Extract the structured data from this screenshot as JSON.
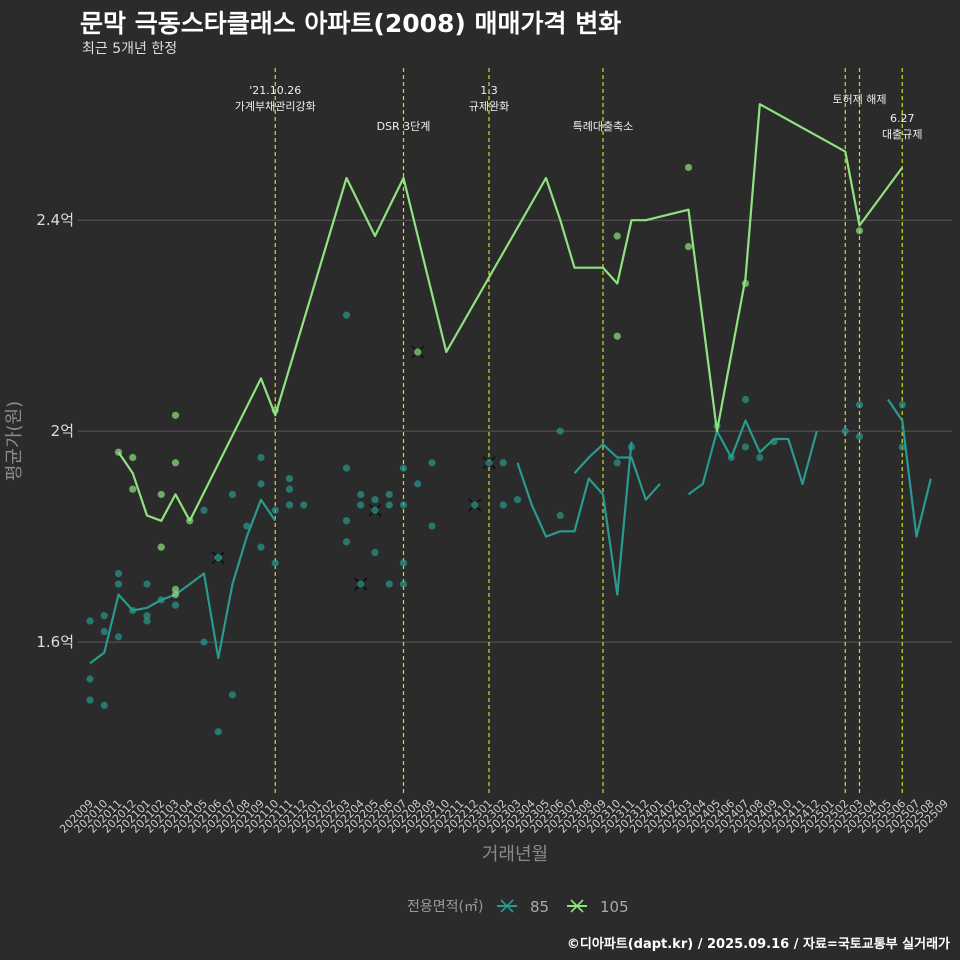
{
  "header": {
    "title": "문막 극동스타클래스 아파트(2008) 매매가격 변화",
    "subtitle": "최근 5개년 한정"
  },
  "footer": {
    "caption": "©디아파트(dapt.kr) / 2025.09.16 / 자료=국토교통부 실거래가"
  },
  "colors": {
    "background": "#2b2b2b",
    "grid": "#5a5a5a",
    "series_85": "#2a9a8f",
    "series_105": "#8fe37f",
    "event_line": "#d7d72a"
  },
  "chart_data": {
    "type": "line",
    "title": "문막 극동스타클래스 아파트(2008) 매매가격 변화",
    "subtitle": "최근 5개년 한정",
    "xlabel": "거래년월",
    "ylabel": "평균가(원)",
    "ylim": [
      1.31,
      2.7
    ],
    "yticks": [
      1.6,
      2.0,
      2.4
    ],
    "ytick_labels": [
      "1.6억",
      "2억",
      "2.4억"
    ],
    "grid": true,
    "legend": {
      "title": "전용면적(㎡)",
      "position": "bottom",
      "entries": [
        "85",
        "105"
      ]
    },
    "x_categories": [
      "202009",
      "202010",
      "202011",
      "202012",
      "202101",
      "202102",
      "202103",
      "202104",
      "202105",
      "202106",
      "202107",
      "202108",
      "202109",
      "202110",
      "202111",
      "202112",
      "202201",
      "202202",
      "202203",
      "202204",
      "202205",
      "202206",
      "202207",
      "202208",
      "202209",
      "202210",
      "202211",
      "202212",
      "202301",
      "202302",
      "202303",
      "202304",
      "202305",
      "202306",
      "202307",
      "202308",
      "202309",
      "202310",
      "202311",
      "202312",
      "202401",
      "202402",
      "202403",
      "202404",
      "202405",
      "202406",
      "202407",
      "202408",
      "202409",
      "202410",
      "202411",
      "202412",
      "202501",
      "202502",
      "202503",
      "202504",
      "202505",
      "202506",
      "202507",
      "202508",
      "202509"
    ],
    "events": [
      {
        "x": "202110",
        "label": "'21.10.26\n가계부채관리강화",
        "row": 0
      },
      {
        "x": "202207",
        "label": "DSR 3단계",
        "row": 1
      },
      {
        "x": "202301",
        "label": "1.3\n규제완화",
        "row": 0
      },
      {
        "x": "202309",
        "label": "특례대출축소",
        "row": 1
      },
      {
        "x": "202502",
        "label": "",
        "row": 0
      },
      {
        "x": "202503",
        "label": "토허제 해제",
        "row": 0
      },
      {
        "x": "202506",
        "label": "6.27\n대출규제",
        "row": 1
      }
    ],
    "series": [
      {
        "name": "85",
        "color": "#2a9a8f",
        "lines": [
          [
            [
              "202009",
              1.56
            ],
            [
              "202010",
              1.58
            ],
            [
              "202011",
              1.69
            ],
            [
              "202012",
              1.66
            ],
            [
              "202101",
              1.665
            ],
            [
              "202102",
              1.68
            ],
            [
              "202103",
              1.69
            ],
            [
              "202104",
              1.71
            ],
            [
              "202105",
              1.73
            ],
            [
              "202106",
              1.57
            ],
            [
              "202107",
              1.71
            ],
            [
              "202108",
              1.8
            ],
            [
              "202109",
              1.87
            ],
            [
              "202110",
              1.83
            ]
          ],
          [
            [
              "202303",
              1.94
            ],
            [
              "202304",
              1.86
            ],
            [
              "202305",
              1.8
            ],
            [
              "202306",
              1.81
            ],
            [
              "202307",
              1.81
            ],
            [
              "202308",
              1.91
            ],
            [
              "202309",
              1.88
            ],
            [
              "202310",
              1.69
            ],
            [
              "202311",
              1.98
            ]
          ],
          [
            [
              "202307",
              1.92
            ],
            [
              "202308",
              1.95
            ],
            [
              "202309",
              1.975
            ],
            [
              "202310",
              1.95
            ],
            [
              "202311",
              1.95
            ],
            [
              "202312",
              1.87
            ],
            [
              "202401",
              1.9
            ]
          ],
          [
            [
              "202403",
              1.88
            ],
            [
              "202404",
              1.9
            ],
            [
              "202405",
              2.0
            ],
            [
              "202406",
              1.95
            ],
            [
              "202407",
              2.02
            ],
            [
              "202408",
              1.96
            ],
            [
              "202409",
              1.985
            ],
            [
              "202410",
              1.985
            ],
            [
              "202411",
              1.9
            ],
            [
              "202412",
              2.0
            ]
          ],
          [
            [
              "202505",
              2.06
            ],
            [
              "202506",
              2.02
            ],
            [
              "202507",
              1.8
            ],
            [
              "202508",
              1.91
            ]
          ]
        ],
        "points": [
          [
            "202009",
            1.64
          ],
          [
            "202009",
            1.53
          ],
          [
            "202009",
            1.49
          ],
          [
            "202010",
            1.65
          ],
          [
            "202010",
            1.62
          ],
          [
            "202010",
            1.48
          ],
          [
            "202011",
            1.73
          ],
          [
            "202011",
            1.71
          ],
          [
            "202011",
            1.61
          ],
          [
            "202012",
            1.66
          ],
          [
            "202101",
            1.65
          ],
          [
            "202101",
            1.64
          ],
          [
            "202101",
            1.71
          ],
          [
            "202102",
            1.68
          ],
          [
            "202103",
            1.67
          ],
          [
            "202105",
            1.85
          ],
          [
            "202105",
            1.6
          ],
          [
            "202106",
            1.43
          ],
          [
            "202106",
            1.76
          ],
          [
            "202107",
            1.88
          ],
          [
            "202107",
            1.5
          ],
          [
            "202108",
            1.82
          ],
          [
            "202109",
            1.95
          ],
          [
            "202109",
            1.9
          ],
          [
            "202109",
            1.78
          ],
          [
            "202110",
            1.85
          ],
          [
            "202110",
            1.75
          ],
          [
            "202111",
            1.91
          ],
          [
            "202111",
            1.89
          ],
          [
            "202111",
            1.86
          ],
          [
            "202112",
            1.86
          ],
          [
            "202203",
            2.22
          ],
          [
            "202203",
            1.93
          ],
          [
            "202203",
            1.83
          ],
          [
            "202203",
            1.79
          ],
          [
            "202204",
            1.88
          ],
          [
            "202204",
            1.86
          ],
          [
            "202205",
            1.87
          ],
          [
            "202205",
            1.77
          ],
          [
            "202206",
            1.88
          ],
          [
            "202206",
            1.86
          ],
          [
            "202206",
            1.71
          ],
          [
            "202207",
            1.93
          ],
          [
            "202207",
            1.86
          ],
          [
            "202207",
            1.75
          ],
          [
            "202207",
            1.71
          ],
          [
            "202208",
            1.9
          ],
          [
            "202209",
            1.94
          ],
          [
            "202209",
            1.82
          ],
          [
            "202302",
            1.94
          ],
          [
            "202302",
            1.86
          ],
          [
            "202303",
            1.87
          ],
          [
            "202306",
            2.0
          ],
          [
            "202306",
            1.84
          ],
          [
            "202310",
            1.94
          ],
          [
            "202311",
            1.97
          ],
          [
            "202405",
            2.01
          ],
          [
            "202406",
            1.95
          ],
          [
            "202407",
            2.06
          ],
          [
            "202407",
            1.97
          ],
          [
            "202408",
            1.95
          ],
          [
            "202409",
            1.98
          ],
          [
            "202502",
            2.0
          ],
          [
            "202503",
            2.05
          ],
          [
            "202503",
            1.99
          ],
          [
            "202506",
            2.05
          ],
          [
            "202506",
            1.97
          ]
        ],
        "cross_points": [
          [
            "202106",
            1.76
          ],
          [
            "202204",
            1.71
          ],
          [
            "202205",
            1.85
          ],
          [
            "202212",
            1.86
          ],
          [
            "202301",
            1.94
          ]
        ]
      },
      {
        "name": "105",
        "color": "#8fe37f",
        "lines": [
          [
            [
              "202011",
              1.96
            ],
            [
              "202012",
              1.92
            ],
            [
              "202101",
              1.84
            ],
            [
              "202102",
              1.83
            ],
            [
              "202103",
              1.88
            ],
            [
              "202104",
              1.83
            ]
          ],
          [
            [
              "202104",
              1.83
            ],
            [
              "202109",
              2.1
            ],
            [
              "202110",
              2.03
            ],
            [
              "202203",
              2.48
            ],
            [
              "202205",
              2.37
            ],
            [
              "202207",
              2.48
            ],
            [
              "202210",
              2.15
            ],
            [
              "202305",
              2.48
            ],
            [
              "202306",
              2.4
            ],
            [
              "202307",
              2.31
            ],
            [
              "202309",
              2.31
            ],
            [
              "202310",
              2.28
            ],
            [
              "202311",
              2.4
            ],
            [
              "202312",
              2.4
            ],
            [
              "202403",
              2.42
            ],
            [
              "202405",
              2.0
            ],
            [
              "202407",
              2.29
            ],
            [
              "202408",
              2.62
            ],
            [
              "202502",
              2.53
            ],
            [
              "202503",
              2.39
            ],
            [
              "202506",
              2.5
            ]
          ]
        ],
        "points": [
          [
            "202011",
            1.96
          ],
          [
            "202012",
            1.95
          ],
          [
            "202012",
            1.89
          ],
          [
            "202102",
            1.88
          ],
          [
            "202102",
            1.78
          ],
          [
            "202103",
            2.03
          ],
          [
            "202103",
            1.94
          ],
          [
            "202103",
            1.7
          ],
          [
            "202103",
            1.69
          ],
          [
            "202104",
            1.83
          ],
          [
            "202110",
            2.04
          ],
          [
            "202310",
            2.37
          ],
          [
            "202310",
            2.18
          ],
          [
            "202403",
            2.5
          ],
          [
            "202403",
            2.35
          ],
          [
            "202407",
            2.28
          ],
          [
            "202503",
            2.38
          ]
        ],
        "cross_points": [
          [
            "202208",
            2.15
          ]
        ]
      }
    ]
  }
}
